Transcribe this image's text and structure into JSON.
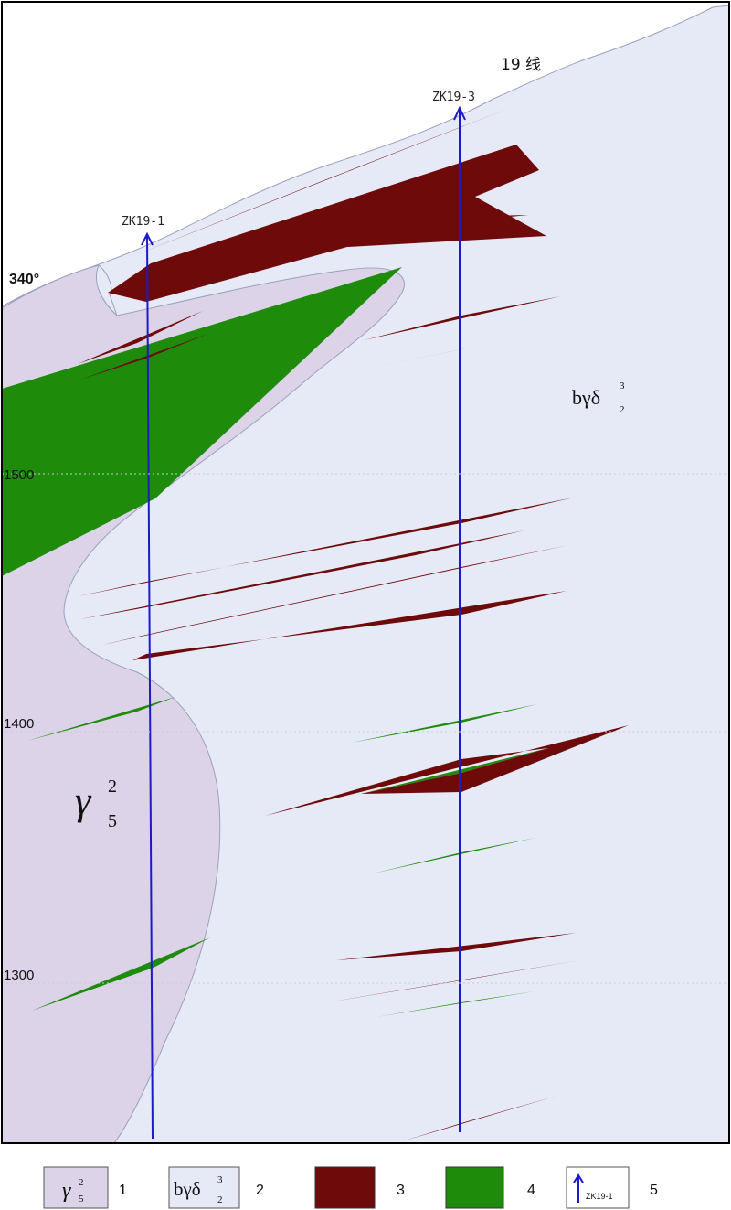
{
  "section": {
    "line_label": "19 线",
    "azimuth_label": "340°",
    "elevations": [
      "1500",
      "1400",
      "1300"
    ],
    "boreholes": [
      "ZK19-1",
      "ZK19-3"
    ],
    "units": {
      "granite": {
        "symbol": "γ",
        "sup": "2",
        "sub": "5"
      },
      "diorite": {
        "symbol": "bγδ",
        "sup": "3",
        "sub": "2"
      }
    },
    "colors": {
      "granite": "#ddd3e9",
      "diorite": "#e6eaf6",
      "ore_body": "#6e0a0a",
      "mineralized_zone": "#1e8c0a",
      "borehole": "#1b1bc8",
      "frame": "#000000"
    }
  },
  "legend": {
    "items": [
      {
        "number": "1",
        "kind": "granite",
        "symbol": "γ",
        "sup": "2",
        "sub": "5"
      },
      {
        "number": "2",
        "kind": "diorite",
        "symbol": "bγδ",
        "sup": "3",
        "sub": "2"
      },
      {
        "number": "3",
        "kind": "ore_body"
      },
      {
        "number": "4",
        "kind": "mineralized_zone"
      },
      {
        "number": "5",
        "kind": "borehole",
        "label": "ZK19-1"
      }
    ]
  }
}
